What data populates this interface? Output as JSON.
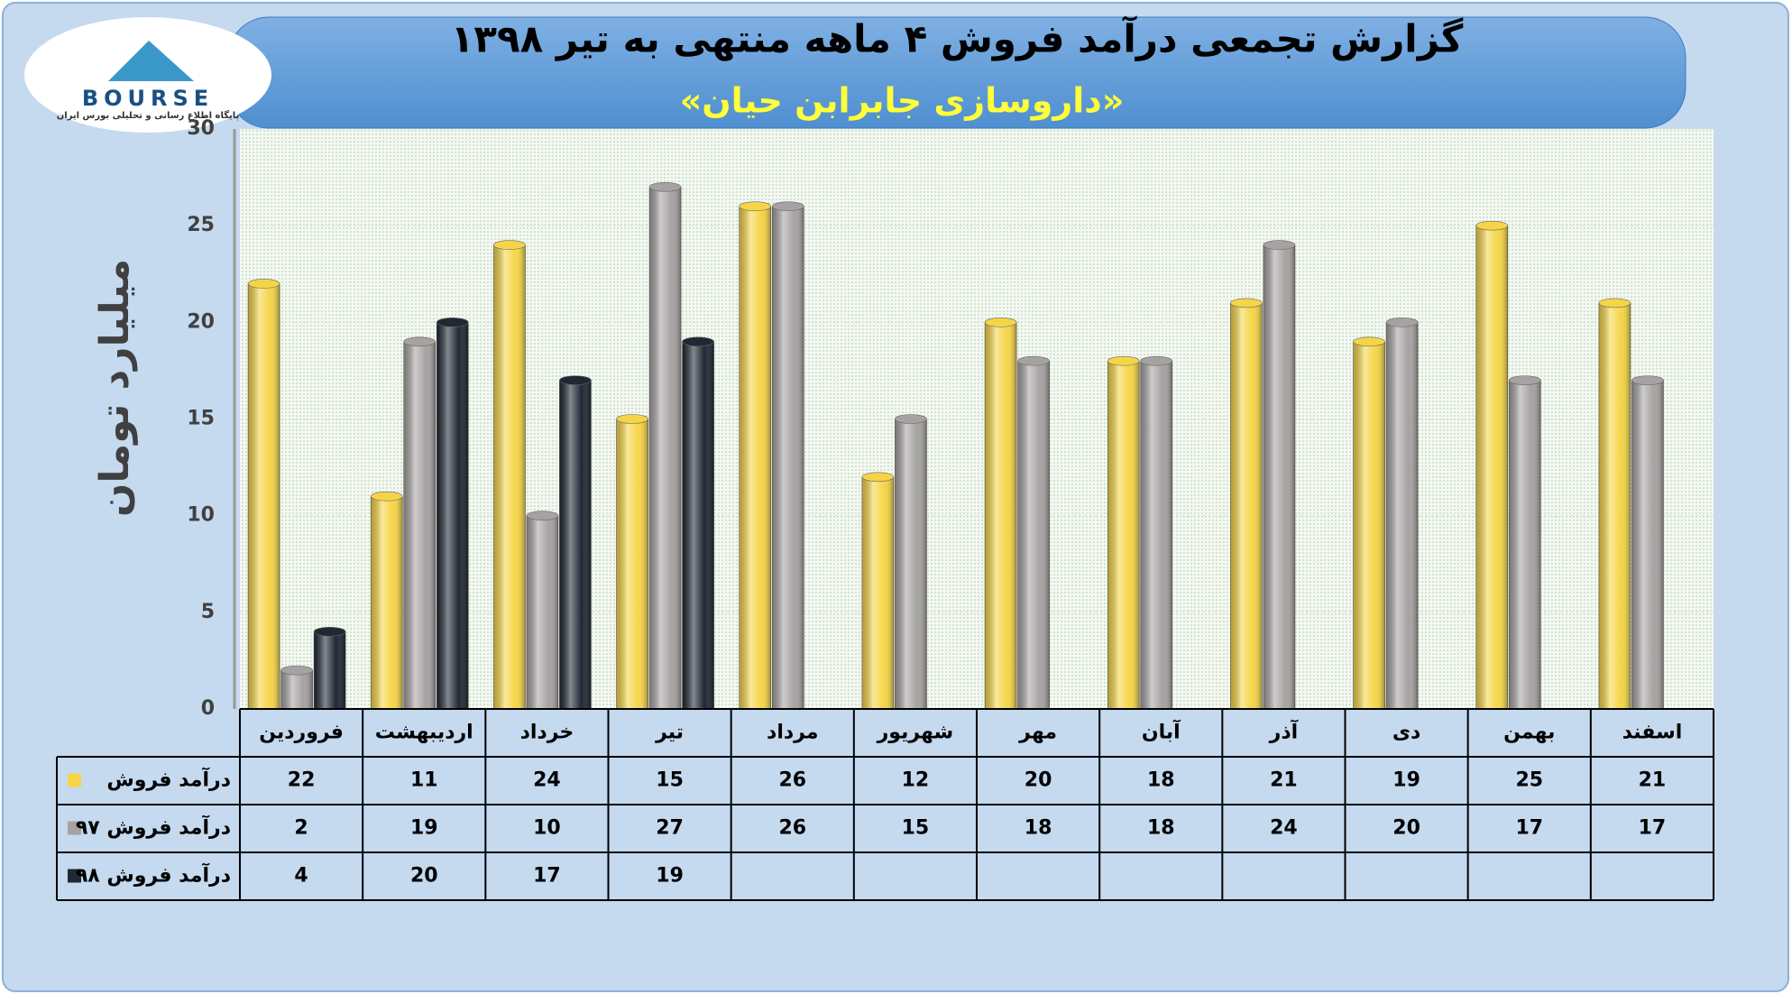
{
  "chart_data": {
    "type": "bar",
    "title": "گزارش تجمعی درآمد فروش ۴ ماهه منتهی به تیر ۱۳۹۸",
    "subtitle": "«داروسازی جابرابن حیان»",
    "y_label": "میلیارد تومان",
    "logo": {
      "name": "BOURSE",
      "caption": "پایگاه اطلاع رسانی و تحلیلی بورس ایران"
    },
    "categories": [
      "فروردین",
      "اردیبهشت",
      "خرداد",
      "تیر",
      "مرداد",
      "شهریور",
      "مهر",
      "آبان",
      "آذر",
      "دی",
      "بهمن",
      "اسفند"
    ],
    "series": [
      {
        "name": "درآمد فروش",
        "color": "#f5d547",
        "values": [
          22,
          11,
          24,
          15,
          26,
          12,
          20,
          18,
          21,
          19,
          25,
          21
        ]
      },
      {
        "name": "درآمد فروش ۹۷",
        "color": "#a6a2a2",
        "values": [
          2,
          19,
          10,
          27,
          26,
          15,
          18,
          18,
          24,
          20,
          17,
          17
        ]
      },
      {
        "name": "درآمد فروش ۹۸",
        "color": "#1f2833",
        "values": [
          4,
          20,
          17,
          19,
          null,
          null,
          null,
          null,
          null,
          null,
          null,
          null
        ]
      }
    ],
    "ylim": [
      0,
      30
    ],
    "yticks": [
      0,
      5,
      10,
      15,
      20,
      25,
      30
    ],
    "grid": true
  }
}
